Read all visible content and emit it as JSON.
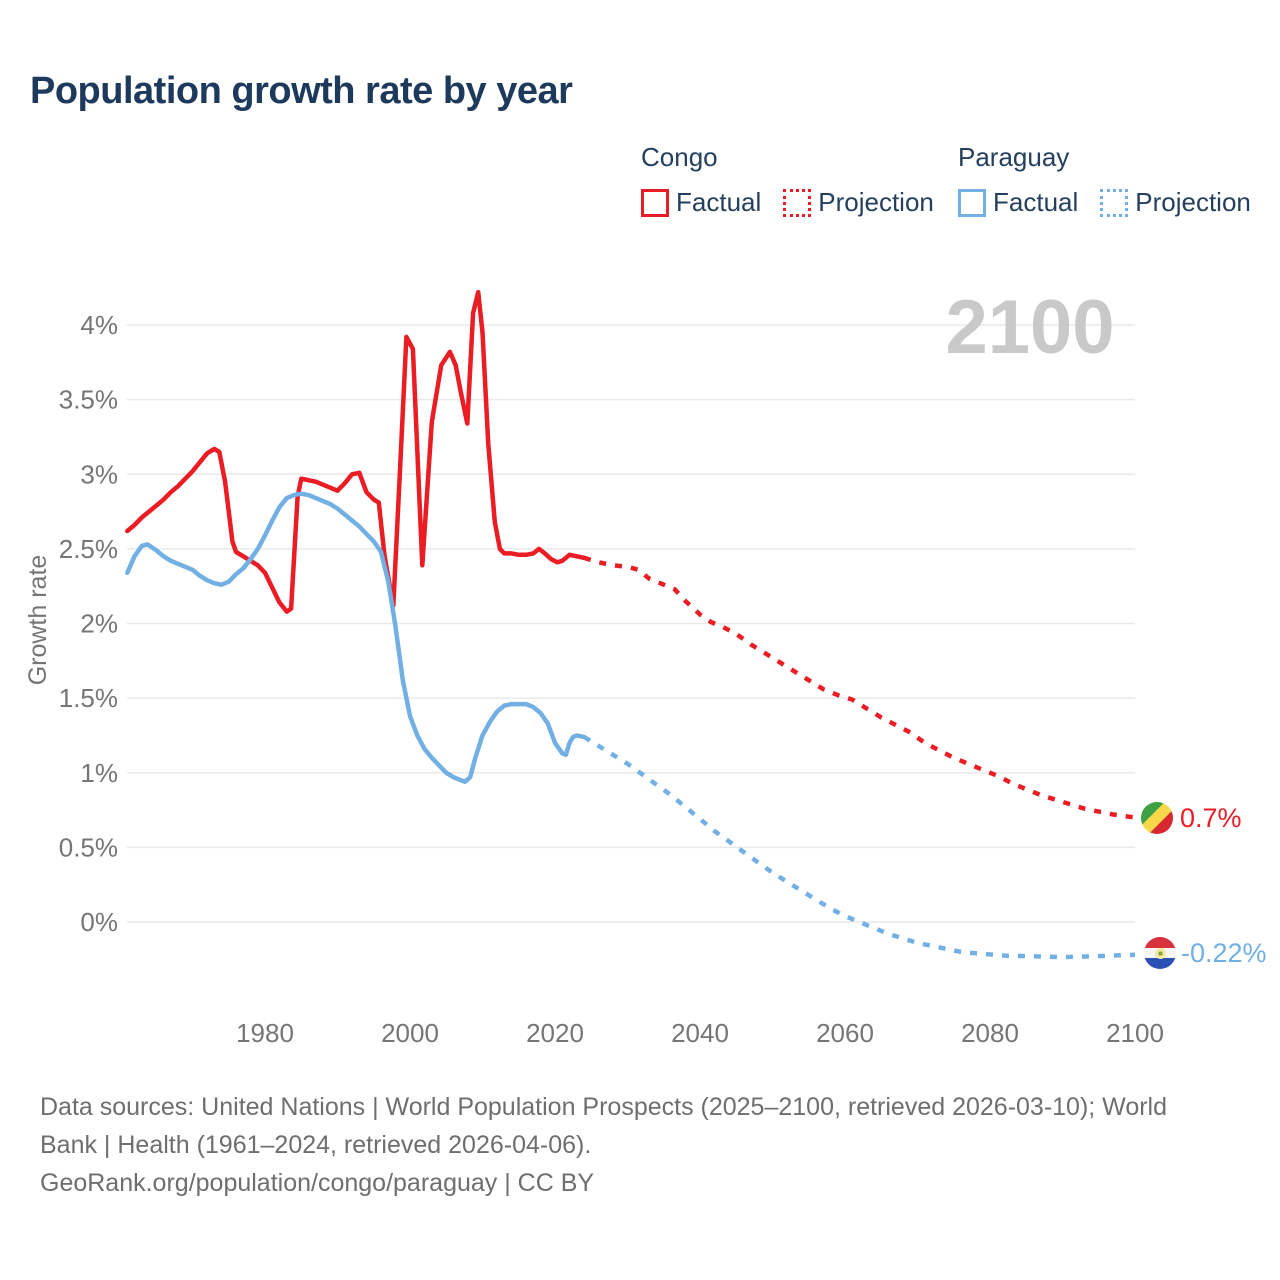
{
  "title": "Population growth rate by year",
  "watermark": "2100",
  "legend": {
    "groups": [
      {
        "country": "Congo",
        "factual_label": "Factual",
        "projection_label": "Projection",
        "color": "#ea1c24"
      },
      {
        "country": "Paraguay",
        "factual_label": "Factual",
        "projection_label": "Projection",
        "color": "#72b0e4"
      }
    ]
  },
  "chart_data": {
    "type": "line",
    "title": "Population growth rate by year",
    "xlabel": "",
    "ylabel": "Growth rate",
    "grid": true,
    "legend_position": "top-right",
    "x_range": [
      1961,
      2100
    ],
    "ylim": [
      -0.35,
      4.35
    ],
    "x_ticks": [
      1980,
      2000,
      2020,
      2040,
      2060,
      2080,
      2100
    ],
    "y_ticks": [
      {
        "label": "0%",
        "value": 0
      },
      {
        "label": "0.5%",
        "value": 0.5
      },
      {
        "label": "1%",
        "value": 1
      },
      {
        "label": "1.5%",
        "value": 1.5
      },
      {
        "label": "2%",
        "value": 2
      },
      {
        "label": "2.5%",
        "value": 2.5
      },
      {
        "label": "3%",
        "value": 3
      },
      {
        "label": "3.5%",
        "value": 3.5
      },
      {
        "label": "4%",
        "value": 4
      }
    ],
    "series": [
      {
        "name": "Congo Factual",
        "country": "Congo",
        "role": "factual",
        "style": "solid",
        "color": "#ea1c24",
        "points": [
          [
            1961,
            2.62
          ],
          [
            1962,
            2.66
          ],
          [
            1963,
            2.71
          ],
          [
            1964,
            2.75
          ],
          [
            1965,
            2.79
          ],
          [
            1966,
            2.83
          ],
          [
            1967,
            2.88
          ],
          [
            1968,
            2.92
          ],
          [
            1969,
            2.97
          ],
          [
            1970,
            3.02
          ],
          [
            1971,
            3.08
          ],
          [
            1972,
            3.14
          ],
          [
            1973,
            3.17
          ],
          [
            1973.7,
            3.15
          ],
          [
            1974.5,
            2.95
          ],
          [
            1975.5,
            2.55
          ],
          [
            1976,
            2.48
          ],
          [
            1977,
            2.45
          ],
          [
            1978,
            2.42
          ],
          [
            1979,
            2.39
          ],
          [
            1980,
            2.34
          ],
          [
            1981,
            2.24
          ],
          [
            1982,
            2.14
          ],
          [
            1983,
            2.08
          ],
          [
            1983.6,
            2.1
          ],
          [
            1984.5,
            2.85
          ],
          [
            1985,
            2.97
          ],
          [
            1986,
            2.96
          ],
          [
            1987,
            2.95
          ],
          [
            1988,
            2.93
          ],
          [
            1989,
            2.91
          ],
          [
            1990,
            2.89
          ],
          [
            1991,
            2.94
          ],
          [
            1992,
            3.0
          ],
          [
            1993,
            3.01
          ],
          [
            1994,
            2.88
          ],
          [
            1995,
            2.83
          ],
          [
            1995.7,
            2.81
          ],
          [
            1996.5,
            2.45
          ],
          [
            1997.7,
            2.12
          ],
          [
            1998.6,
            3.0
          ],
          [
            1999.5,
            3.92
          ],
          [
            2000.4,
            3.84
          ],
          [
            2001.7,
            2.39
          ],
          [
            2003,
            3.35
          ],
          [
            2004.3,
            3.73
          ],
          [
            2005.5,
            3.82
          ],
          [
            2006.3,
            3.73
          ],
          [
            2007,
            3.55
          ],
          [
            2007.9,
            3.34
          ],
          [
            2008.7,
            4.08
          ],
          [
            2009.4,
            4.22
          ],
          [
            2010,
            3.95
          ],
          [
            2010.8,
            3.2
          ],
          [
            2011.7,
            2.68
          ],
          [
            2012.4,
            2.5
          ],
          [
            2013,
            2.47
          ],
          [
            2014,
            2.47
          ],
          [
            2015,
            2.46
          ],
          [
            2016,
            2.46
          ],
          [
            2017,
            2.47
          ],
          [
            2017.8,
            2.5
          ],
          [
            2018.6,
            2.47
          ],
          [
            2019.5,
            2.43
          ],
          [
            2020.3,
            2.41
          ],
          [
            2021,
            2.42
          ],
          [
            2022,
            2.46
          ],
          [
            2023,
            2.45
          ],
          [
            2024,
            2.44
          ]
        ]
      },
      {
        "name": "Congo Projection",
        "country": "Congo",
        "role": "projection",
        "style": "dotted",
        "color": "#ea1c24",
        "points": [
          [
            2024,
            2.44
          ],
          [
            2026,
            2.41
          ],
          [
            2028,
            2.39
          ],
          [
            2030,
            2.38
          ],
          [
            2031.5,
            2.36
          ],
          [
            2033,
            2.3
          ],
          [
            2035,
            2.26
          ],
          [
            2036.5,
            2.23
          ],
          [
            2038,
            2.15
          ],
          [
            2040,
            2.06
          ],
          [
            2041.5,
            2.01
          ],
          [
            2043,
            1.98
          ],
          [
            2045,
            1.93
          ],
          [
            2047,
            1.86
          ],
          [
            2049,
            1.8
          ],
          [
            2051,
            1.74
          ],
          [
            2053,
            1.68
          ],
          [
            2055,
            1.62
          ],
          [
            2057,
            1.56
          ],
          [
            2059,
            1.52
          ],
          [
            2061,
            1.49
          ],
          [
            2063,
            1.43
          ],
          [
            2065,
            1.37
          ],
          [
            2067,
            1.32
          ],
          [
            2069,
            1.27
          ],
          [
            2071,
            1.2
          ],
          [
            2073,
            1.15
          ],
          [
            2075,
            1.1
          ],
          [
            2077,
            1.06
          ],
          [
            2079,
            1.02
          ],
          [
            2081,
            0.98
          ],
          [
            2083,
            0.93
          ],
          [
            2085,
            0.89
          ],
          [
            2087,
            0.85
          ],
          [
            2089,
            0.82
          ],
          [
            2091,
            0.79
          ],
          [
            2093,
            0.76
          ],
          [
            2095,
            0.74
          ],
          [
            2097,
            0.72
          ],
          [
            2100,
            0.7
          ]
        ]
      },
      {
        "name": "Paraguay Factual",
        "country": "Paraguay",
        "role": "factual",
        "style": "solid",
        "color": "#72b0e4",
        "points": [
          [
            1961,
            2.34
          ],
          [
            1962,
            2.45
          ],
          [
            1963,
            2.52
          ],
          [
            1963.8,
            2.53
          ],
          [
            1965,
            2.49
          ],
          [
            1966,
            2.45
          ],
          [
            1967,
            2.42
          ],
          [
            1968,
            2.4
          ],
          [
            1969,
            2.38
          ],
          [
            1970,
            2.36
          ],
          [
            1971,
            2.32
          ],
          [
            1972,
            2.29
          ],
          [
            1973,
            2.27
          ],
          [
            1974,
            2.26
          ],
          [
            1975,
            2.28
          ],
          [
            1976,
            2.33
          ],
          [
            1977,
            2.37
          ],
          [
            1978,
            2.43
          ],
          [
            1979,
            2.5
          ],
          [
            1980,
            2.59
          ],
          [
            1981,
            2.69
          ],
          [
            1982,
            2.78
          ],
          [
            1983,
            2.84
          ],
          [
            1984,
            2.86
          ],
          [
            1985,
            2.87
          ],
          [
            1986,
            2.86
          ],
          [
            1987,
            2.84
          ],
          [
            1988,
            2.82
          ],
          [
            1989,
            2.8
          ],
          [
            1990,
            2.77
          ],
          [
            1991,
            2.73
          ],
          [
            1992,
            2.69
          ],
          [
            1993,
            2.65
          ],
          [
            1994,
            2.6
          ],
          [
            1995,
            2.55
          ],
          [
            1996,
            2.48
          ],
          [
            1997,
            2.28
          ],
          [
            1998,
            1.98
          ],
          [
            1999,
            1.62
          ],
          [
            2000,
            1.38
          ],
          [
            2001,
            1.25
          ],
          [
            2002,
            1.16
          ],
          [
            2003,
            1.1
          ],
          [
            2004,
            1.05
          ],
          [
            2005,
            1.0
          ],
          [
            2006,
            0.97
          ],
          [
            2007,
            0.95
          ],
          [
            2007.6,
            0.94
          ],
          [
            2008.3,
            0.97
          ],
          [
            2009,
            1.1
          ],
          [
            2010,
            1.25
          ],
          [
            2011,
            1.34
          ],
          [
            2012,
            1.41
          ],
          [
            2013,
            1.45
          ],
          [
            2014,
            1.46
          ],
          [
            2015,
            1.46
          ],
          [
            2016,
            1.46
          ],
          [
            2017,
            1.44
          ],
          [
            2018,
            1.4
          ],
          [
            2019,
            1.33
          ],
          [
            2020,
            1.2
          ],
          [
            2021,
            1.13
          ],
          [
            2021.5,
            1.12
          ],
          [
            2022,
            1.2
          ],
          [
            2022.5,
            1.24
          ],
          [
            2023,
            1.25
          ],
          [
            2024,
            1.24
          ]
        ]
      },
      {
        "name": "Paraguay Projection",
        "country": "Paraguay",
        "role": "projection",
        "style": "dotted",
        "color": "#72b0e4",
        "points": [
          [
            2024,
            1.24
          ],
          [
            2026,
            1.18
          ],
          [
            2028,
            1.12
          ],
          [
            2030,
            1.06
          ],
          [
            2032,
            0.99
          ],
          [
            2034,
            0.92
          ],
          [
            2036,
            0.85
          ],
          [
            2038,
            0.77
          ],
          [
            2040,
            0.69
          ],
          [
            2042,
            0.61
          ],
          [
            2044,
            0.54
          ],
          [
            2046,
            0.47
          ],
          [
            2048,
            0.4
          ],
          [
            2050,
            0.33
          ],
          [
            2052,
            0.27
          ],
          [
            2054,
            0.21
          ],
          [
            2056,
            0.15
          ],
          [
            2058,
            0.09
          ],
          [
            2060,
            0.04
          ],
          [
            2062,
            0.0
          ],
          [
            2064,
            -0.04
          ],
          [
            2066,
            -0.08
          ],
          [
            2068,
            -0.11
          ],
          [
            2070,
            -0.14
          ],
          [
            2072,
            -0.16
          ],
          [
            2074,
            -0.18
          ],
          [
            2076,
            -0.2
          ],
          [
            2078,
            -0.21
          ],
          [
            2082,
            -0.225
          ],
          [
            2086,
            -0.23
          ],
          [
            2090,
            -0.235
          ],
          [
            2094,
            -0.23
          ],
          [
            2100,
            -0.22
          ]
        ]
      }
    ],
    "end_labels": [
      {
        "series": "Congo",
        "label": "0.7%",
        "color": "#ea1c24",
        "flag": "republic-of-the-congo"
      },
      {
        "series": "Paraguay",
        "label": "-0.22%",
        "color": "#72b0e4",
        "flag": "paraguay"
      }
    ],
    "watermark": "2100"
  },
  "footer": {
    "line1": "Data sources: United Nations | World Population Prospects (2025–2100, retrieved 2026-03-10); World",
    "line2": "Bank | Health (1961–2024, retrieved 2026-04-06).",
    "line3": "GeoRank.org/population/congo/paraguay | CC BY"
  },
  "colors": {
    "congo": "#ea1c24",
    "paraguay": "#72b0e4",
    "title_text": "#1d3a5c",
    "axis_text": "#757575",
    "gridline": "#e9e9e9",
    "watermark_text": "#c9c9c9",
    "footer_text": "#6e6e6e"
  }
}
